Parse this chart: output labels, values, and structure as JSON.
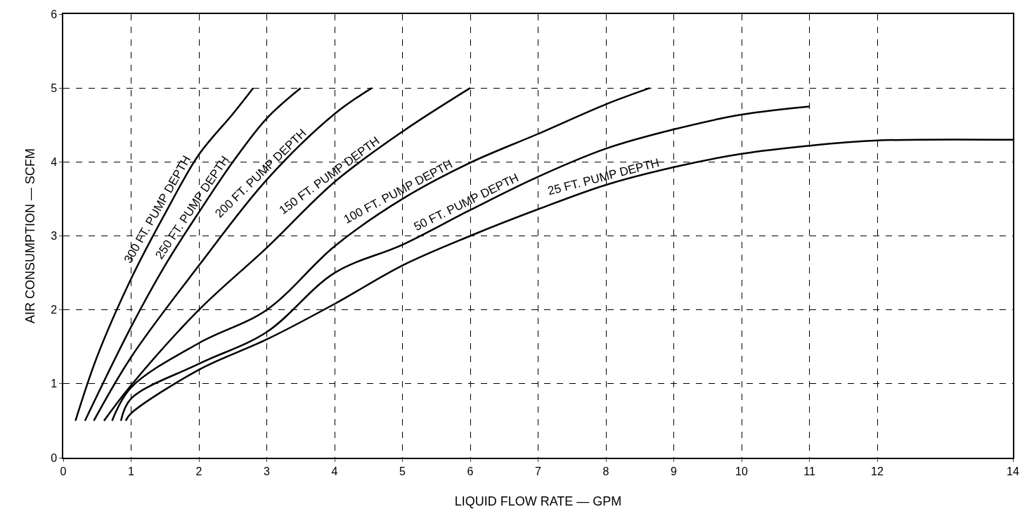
{
  "chart_data": {
    "type": "line",
    "xlabel": "LIQUID FLOW RATE — GPM",
    "ylabel": "AIR CONSUMPTION — SCFM",
    "xlim": [
      0,
      14
    ],
    "xticks": [
      0,
      1,
      2,
      3,
      4,
      5,
      6,
      7,
      8,
      9,
      10,
      11,
      12,
      14
    ],
    "ylim": [
      0,
      6
    ],
    "yticks": [
      0,
      1,
      2,
      3,
      4,
      5,
      6
    ],
    "grid": true,
    "marker": "none",
    "line_style": "solid",
    "series": [
      {
        "color": "#000000",
        "x": [
          0.18,
          0.5,
          1,
          1.5,
          2,
          2.5,
          2.8
        ],
        "values": [
          0.5,
          1.37,
          2.42,
          3.3,
          4.1,
          4.65,
          5.0
        ]
      },
      {
        "color": "#000000",
        "x": [
          0.32,
          1,
          1.5,
          2,
          2.5,
          3,
          3.5
        ],
        "values": [
          0.5,
          1.77,
          2.6,
          3.32,
          4.0,
          4.59,
          5.0
        ]
      },
      {
        "color": "#000000",
        "x": [
          0.45,
          1,
          2,
          3,
          4,
          4.55
        ],
        "values": [
          0.5,
          1.36,
          2.6,
          3.76,
          4.65,
          5.0
        ]
      },
      {
        "color": "#000000",
        "x": [
          0.6,
          1,
          2,
          3,
          4,
          5,
          6
        ],
        "values": [
          0.5,
          0.98,
          2.0,
          2.84,
          3.73,
          4.41,
          5.0
        ]
      },
      {
        "color": "#000000",
        "x": [
          0.72,
          1,
          2,
          3,
          4,
          5,
          6,
          7,
          8,
          8.65
        ],
        "values": [
          0.5,
          0.95,
          1.55,
          2.0,
          2.86,
          3.5,
          3.99,
          4.38,
          4.78,
          5.0
        ]
      },
      {
        "color": "#000000",
        "x": [
          0.85,
          1,
          2,
          3,
          4,
          5,
          6,
          7,
          8,
          9,
          10,
          11
        ],
        "values": [
          0.5,
          0.8,
          1.27,
          1.7,
          2.5,
          2.88,
          3.35,
          3.8,
          4.18,
          4.44,
          4.64,
          4.75
        ]
      },
      {
        "color": "#000000",
        "x": [
          0.92,
          1,
          2,
          3,
          4,
          5,
          6,
          7,
          8,
          9,
          10,
          11,
          12,
          14
        ],
        "values": [
          0.5,
          0.6,
          1.19,
          1.6,
          2.08,
          2.6,
          3.0,
          3.36,
          3.69,
          3.93,
          4.11,
          4.22,
          4.29,
          4.3
        ]
      }
    ],
    "annotations": [
      {
        "text": "300 FT. PUMP DEPTH",
        "x": 1.5,
        "y": 3.3
      },
      {
        "text": "250 FT. PUMP DEPTH",
        "x": 2,
        "y": 3.32
      },
      {
        "text": "200 FT. PUMP DEPTH",
        "x": 3,
        "y": 3.76
      },
      {
        "text": "150 FT. PUMP DEPTH",
        "x": 4,
        "y": 3.73
      },
      {
        "text": "100 FT. PUMP DEPTH",
        "x": 5,
        "y": 3.5
      },
      {
        "text": "50 FT. PUMP DEPTH",
        "x": 6,
        "y": 3.35
      },
      {
        "text": "25 FT. PUMP DEPTH",
        "x": 8,
        "y": 3.69
      }
    ]
  }
}
